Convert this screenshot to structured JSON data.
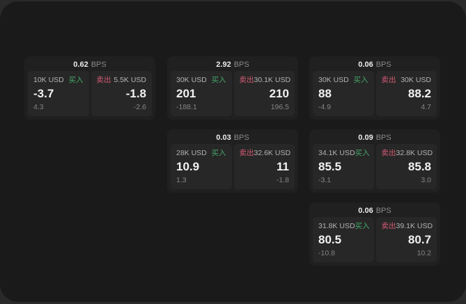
{
  "labels": {
    "buy": "买入",
    "sell": "卖出",
    "bps_unit": "BPS"
  },
  "colors": {
    "buy": "#45a869",
    "sell": "#d25b72",
    "window_bg": "#1a1a1a",
    "card_bg": "#202020",
    "panel_bg": "#272727"
  },
  "cards": [
    {
      "bps": "0.62",
      "buy_amount": "10K USD",
      "buy_price": "-3.7",
      "buy_delta": "4.3",
      "sell_amount": "5.5K USD",
      "sell_price": "-1.8",
      "sell_delta": "-2.6"
    },
    {
      "bps": "2.92",
      "buy_amount": "30K USD",
      "buy_price": "201",
      "buy_delta": "-188.1",
      "sell_amount": "30.1K USD",
      "sell_price": "210",
      "sell_delta": "196.5"
    },
    {
      "bps": "0.06",
      "buy_amount": "30K USD",
      "buy_price": "88",
      "buy_delta": "-4.9",
      "sell_amount": "30K USD",
      "sell_price": "88.2",
      "sell_delta": "4.7"
    },
    {
      "bps": "0.03",
      "buy_amount": "28K USD",
      "buy_price": "10.9",
      "buy_delta": "1.3",
      "sell_amount": "32.6K USD",
      "sell_price": "11",
      "sell_delta": "-1.8"
    },
    {
      "bps": "0.09",
      "buy_amount": "34.1K USD",
      "buy_price": "85.5",
      "buy_delta": "-3.1",
      "sell_amount": "32.8K USD",
      "sell_price": "85.8",
      "sell_delta": "3.0"
    },
    {
      "bps": "0.06",
      "buy_amount": "31.8K USD",
      "buy_price": "80.5",
      "buy_delta": "-10.8",
      "sell_amount": "39.1K USD",
      "sell_price": "80.7",
      "sell_delta": "10.2"
    }
  ]
}
